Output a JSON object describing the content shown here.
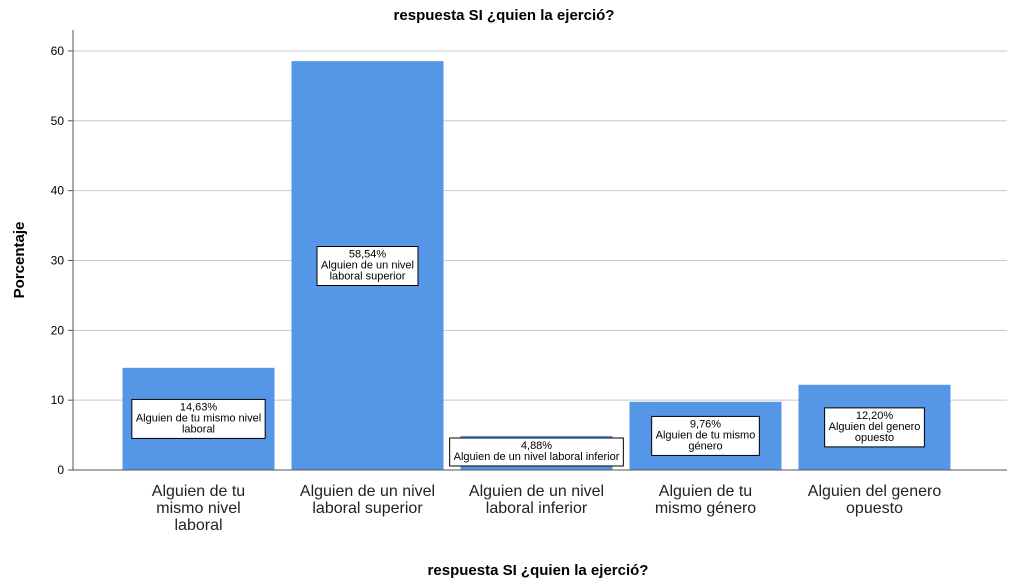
{
  "chart_data": {
    "type": "bar",
    "title": "respuesta SI ¿quien la ejerció?",
    "xlabel": "respuesta SI ¿quien la ejerció?",
    "ylabel": "Porcentaje",
    "ylim": [
      0,
      63
    ],
    "yticks": [
      0,
      10,
      20,
      30,
      40,
      50,
      60
    ],
    "grid": true,
    "bar_color": "#5596e6",
    "categories": [
      "Alguien de tu mismo nivel laboral",
      "Alguien de un nivel laboral superior",
      "Alguien de un nivel laboral inferior",
      "Alguien de tu mismo género",
      "Alguien del genero opuesto"
    ],
    "category_lines": [
      [
        "Alguien de tu",
        "mismo nivel",
        "laboral"
      ],
      [
        "Alguien de un nivel",
        "laboral superior"
      ],
      [
        "Alguien de un nivel",
        "laboral inferior"
      ],
      [
        "Alguien de tu",
        "mismo género"
      ],
      [
        "Alguien del genero",
        "opuesto"
      ]
    ],
    "values": [
      14.63,
      58.54,
      4.88,
      9.76,
      12.2
    ],
    "data_labels": [
      {
        "value": "14,63%",
        "lines": [
          "Alguien de tu mismo nivel",
          "laboral"
        ]
      },
      {
        "value": "58,54%",
        "lines": [
          "Alguien de un nivel",
          "laboral superior"
        ]
      },
      {
        "value": "4,88%",
        "lines": [
          "Alguien de un nivel laboral inferior"
        ]
      },
      {
        "value": "9,76%",
        "lines": [
          "Alguien de tu mismo",
          "género"
        ]
      },
      {
        "value": "12,20%",
        "lines": [
          "Alguien del genero",
          "opuesto"
        ]
      }
    ]
  }
}
